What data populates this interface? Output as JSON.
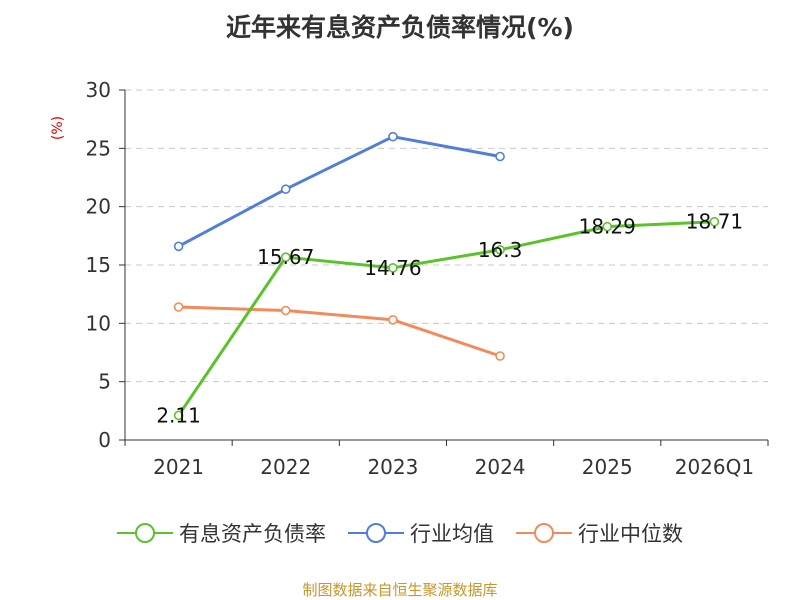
{
  "title": "近年来有息资产负债率情况(%)",
  "unit": "(%)",
  "source": "制图数据来自恒生聚源数据库",
  "chart_data": {
    "type": "line",
    "title": "近年来有息资产负债率情况(%)",
    "ylabel": "(%)",
    "categories": [
      "2021",
      "2022",
      "2023",
      "2024",
      "2025",
      "2026Q1"
    ],
    "ylim": [
      0,
      30
    ],
    "yticks": [
      0,
      5,
      10,
      15,
      20,
      25,
      30
    ],
    "grid": true,
    "legend_position": "bottom",
    "series": [
      {
        "name": "有息资产负债率",
        "color": "#5cc22b",
        "values": [
          2.11,
          15.67,
          14.76,
          16.3,
          18.29,
          18.71
        ],
        "labels": [
          "2.11",
          "15.67",
          "14.76",
          "16.3",
          "18.29",
          "18.71"
        ]
      },
      {
        "name": "行业均值",
        "color": "#4f7fd8",
        "values": [
          16.6,
          21.5,
          26.0,
          24.3,
          null,
          null
        ]
      },
      {
        "name": "行业中位数",
        "color": "#f28b5b",
        "values": [
          11.4,
          11.1,
          10.3,
          7.2,
          null,
          null
        ]
      }
    ]
  }
}
